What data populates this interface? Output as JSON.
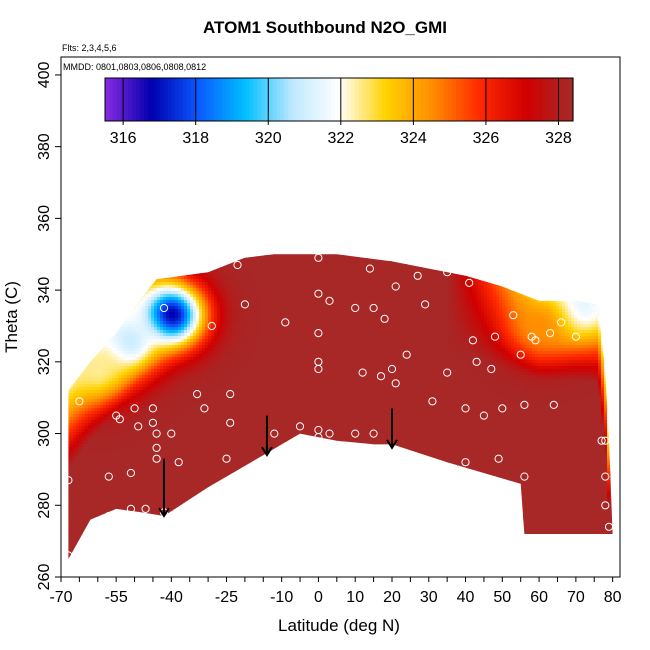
{
  "chart_data": {
    "type": "heatmap",
    "title": "ATOM1 Southbound N2O_GMI",
    "flights_note": "Flts: 2,3,4,5,6",
    "dates_note": "MMDD: 0801,0803,0806,0808,0812",
    "xlabel": "Latitude (deg N)",
    "ylabel": "Theta (C)",
    "xlim": [
      -70,
      82
    ],
    "ylim": [
      260,
      405
    ],
    "x_tick_labels": [
      "-70",
      "-55",
      "-40",
      "-25",
      "-10",
      "0",
      "10",
      "20",
      "30",
      "40",
      "50",
      "60",
      "70",
      "80"
    ],
    "x_tick_values": [
      -70,
      -55,
      -40,
      -25,
      -10,
      0,
      10,
      20,
      30,
      40,
      50,
      60,
      70,
      80
    ],
    "y_tick_labels": [
      "260",
      "280",
      "300",
      "320",
      "340",
      "360",
      "380",
      "400"
    ],
    "y_tick_values": [
      260,
      280,
      300,
      320,
      340,
      360,
      380,
      400
    ],
    "colorbar": {
      "min": 315.5,
      "max": 328.4,
      "tick_labels": [
        "316",
        "318",
        "320",
        "322",
        "324",
        "326",
        "328"
      ],
      "tick_values": [
        316,
        318,
        320,
        322,
        324,
        326,
        328
      ],
      "colors": [
        "#8a2be2",
        "#0000b0",
        "#0a5aff",
        "#00bfff",
        "#bfe8ff",
        "#ffffff",
        "#ffd200",
        "#ff8c00",
        "#ff2a00",
        "#d00000",
        "#a52a2a"
      ]
    },
    "field_boundary": {
      "upper": [
        [
          -68,
          312
        ],
        [
          -62,
          320
        ],
        [
          -55,
          328
        ],
        [
          -48,
          338
        ],
        [
          -44,
          343
        ],
        [
          -30,
          345
        ],
        [
          -20,
          349
        ],
        [
          -12,
          350
        ],
        [
          -5,
          350
        ],
        [
          5,
          350
        ],
        [
          20,
          348
        ],
        [
          30,
          346
        ],
        [
          40,
          344
        ],
        [
          50,
          341
        ],
        [
          60,
          337
        ],
        [
          70,
          337
        ],
        [
          76,
          336
        ],
        [
          78,
          317
        ],
        [
          79,
          298
        ]
      ],
      "lower": [
        [
          -68,
          265
        ],
        [
          -62,
          276
        ],
        [
          -55,
          279
        ],
        [
          -48,
          278
        ],
        [
          -42,
          277
        ],
        [
          -30,
          285
        ],
        [
          -15,
          294
        ],
        [
          -5,
          300
        ],
        [
          5,
          298
        ],
        [
          15,
          297
        ],
        [
          20,
          297
        ],
        [
          35,
          292
        ],
        [
          55,
          286
        ],
        [
          56,
          272
        ],
        [
          80,
          272
        ]
      ]
    },
    "anomaly_regions": [
      {
        "lat": -40,
        "theta": 333,
        "value": 316.5
      },
      {
        "lat": -52,
        "theta": 325,
        "value": 320.5
      },
      {
        "lat": -60,
        "theta": 318,
        "value": 322.5
      },
      {
        "lat": 70,
        "theta": 335,
        "value": 321
      },
      {
        "lat": 60,
        "theta": 330,
        "value": 324.5
      }
    ],
    "sample_points": [
      [
        -68,
        287
      ],
      [
        -68,
        266
      ],
      [
        -65,
        309
      ],
      [
        -57,
        288
      ],
      [
        -57,
        277
      ],
      [
        -55,
        305
      ],
      [
        -54,
        304
      ],
      [
        -51,
        289
      ],
      [
        -51,
        279
      ],
      [
        -50,
        307
      ],
      [
        -49,
        302
      ],
      [
        -47,
        279
      ],
      [
        -45,
        307
      ],
      [
        -45,
        303
      ],
      [
        -44,
        300
      ],
      [
        -44,
        296
      ],
      [
        -44,
        293
      ],
      [
        -42,
        278
      ],
      [
        -42,
        335
      ],
      [
        -40,
        300
      ],
      [
        -38,
        292
      ],
      [
        -33,
        311
      ],
      [
        -31,
        307
      ],
      [
        -29,
        330
      ],
      [
        -25,
        293
      ],
      [
        -24,
        303
      ],
      [
        -24,
        311
      ],
      [
        -22,
        347
      ],
      [
        -20,
        336
      ],
      [
        -12,
        300
      ],
      [
        -9,
        331
      ],
      [
        -5,
        302
      ],
      [
        0,
        349
      ],
      [
        0,
        339
      ],
      [
        0,
        328
      ],
      [
        0,
        320
      ],
      [
        0,
        318
      ],
      [
        0,
        301
      ],
      [
        0,
        299
      ],
      [
        3,
        337
      ],
      [
        3,
        300
      ],
      [
        10,
        335
      ],
      [
        10,
        300
      ],
      [
        12,
        317
      ],
      [
        14,
        346
      ],
      [
        15,
        300
      ],
      [
        15,
        335
      ],
      [
        17,
        316
      ],
      [
        18,
        332
      ],
      [
        20,
        318
      ],
      [
        21,
        341
      ],
      [
        21,
        314
      ],
      [
        24,
        322
      ],
      [
        27,
        344
      ],
      [
        29,
        336
      ],
      [
        31,
        309
      ],
      [
        35,
        345
      ],
      [
        35,
        317
      ],
      [
        40,
        307
      ],
      [
        40,
        292
      ],
      [
        41,
        342
      ],
      [
        42,
        326
      ],
      [
        43,
        320
      ],
      [
        45,
        305
      ],
      [
        47,
        318
      ],
      [
        48,
        327
      ],
      [
        49,
        293
      ],
      [
        50,
        307
      ],
      [
        53,
        333
      ],
      [
        55,
        322
      ],
      [
        56,
        288
      ],
      [
        56,
        308
      ],
      [
        58,
        327
      ],
      [
        59,
        326
      ],
      [
        63,
        328
      ],
      [
        64,
        308
      ],
      [
        66,
        331
      ],
      [
        70,
        327
      ],
      [
        75,
        336
      ],
      [
        77,
        298
      ],
      [
        78,
        298
      ],
      [
        78,
        288
      ],
      [
        78,
        280
      ],
      [
        79,
        274
      ]
    ],
    "arrows": [
      {
        "lat": -42,
        "theta_top": 293,
        "theta_bottom": 277
      },
      {
        "lat": -14,
        "theta_top": 305,
        "theta_bottom": 294
      },
      {
        "lat": 20,
        "theta_top": 307,
        "theta_bottom": 296
      }
    ]
  }
}
